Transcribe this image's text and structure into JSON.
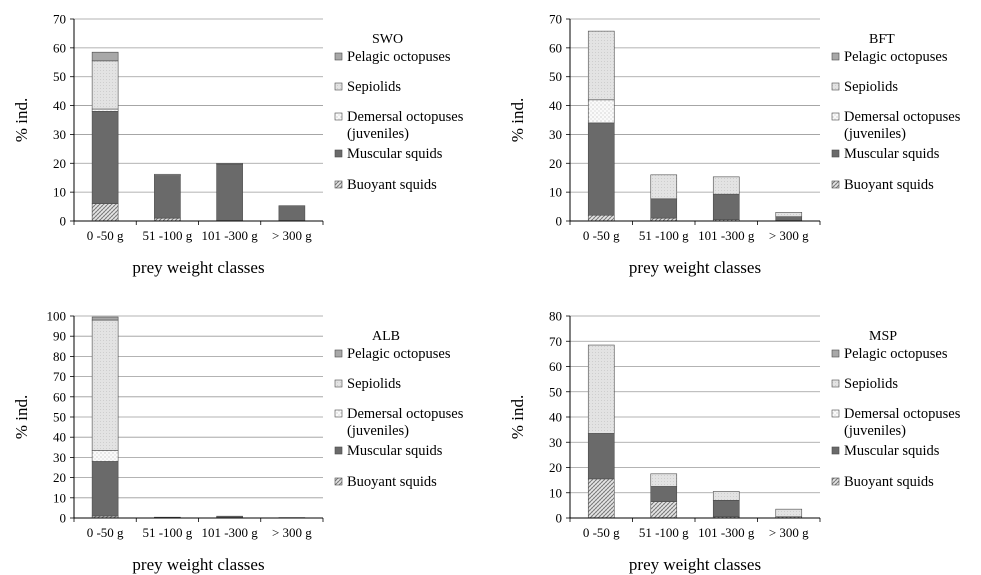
{
  "chart_data": [
    {
      "type": "bar",
      "stacked": true,
      "title": "SWO",
      "xlabel": "prey weight classes",
      "ylabel": "% ind.",
      "ylim": [
        0,
        70
      ],
      "yticks": [
        0,
        10,
        20,
        30,
        40,
        50,
        60,
        70
      ],
      "grid": true,
      "legend": "right",
      "categories": [
        "0 -50 g",
        "51 -100 g",
        "101 -300 g",
        "> 300 g"
      ],
      "series": [
        {
          "name": "Buoyant squids",
          "values": [
            6,
            1,
            0,
            0
          ]
        },
        {
          "name": "Muscular squids",
          "values": [
            32,
            14.7,
            19.7,
            5.3
          ]
        },
        {
          "name": "Demersal octopuses (juveniles)",
          "values": [
            0.8,
            0,
            0,
            0
          ]
        },
        {
          "name": "Sepiolids",
          "values": [
            16.7,
            0,
            0,
            0
          ]
        },
        {
          "name": "Pelagic octopuses",
          "values": [
            3,
            0.5,
            0.3,
            0
          ]
        }
      ]
    },
    {
      "type": "bar",
      "stacked": true,
      "title": "BFT",
      "xlabel": "prey weight classes",
      "ylabel": "% ind.",
      "ylim": [
        0,
        70
      ],
      "yticks": [
        0,
        10,
        20,
        30,
        40,
        50,
        60,
        70
      ],
      "grid": true,
      "legend": "right",
      "categories": [
        "0 -50 g",
        "51 -100 g",
        "101 -300 g",
        "> 300 g"
      ],
      "series": [
        {
          "name": "Buoyant squids",
          "values": [
            2,
            1,
            0.5,
            0
          ]
        },
        {
          "name": "Muscular squids",
          "values": [
            32,
            6.7,
            8.8,
            1.5
          ]
        },
        {
          "name": "Demersal octopuses (juveniles)",
          "values": [
            8,
            0,
            0,
            0
          ]
        },
        {
          "name": "Sepiolids",
          "values": [
            23.8,
            8.3,
            6,
            1.5
          ]
        },
        {
          "name": "Pelagic octopuses",
          "values": [
            0,
            0,
            0,
            0
          ]
        }
      ]
    },
    {
      "type": "bar",
      "stacked": true,
      "title": "ALB",
      "xlabel": "prey weight classes",
      "ylabel": "% ind.",
      "ylim": [
        0,
        100
      ],
      "yticks": [
        0,
        10,
        20,
        30,
        40,
        50,
        60,
        70,
        80,
        90,
        100
      ],
      "grid": true,
      "legend": "right",
      "categories": [
        "0 -50 g",
        "51 -100 g",
        "101 -300 g",
        "> 300 g"
      ],
      "series": [
        {
          "name": "Buoyant squids",
          "values": [
            1,
            0,
            0,
            0
          ]
        },
        {
          "name": "Muscular squids",
          "values": [
            27,
            0.4,
            0.9,
            0.2
          ]
        },
        {
          "name": "Demersal octopuses (juveniles)",
          "values": [
            5.5,
            0,
            0,
            0
          ]
        },
        {
          "name": "Sepiolids",
          "values": [
            64.5,
            0,
            0,
            0
          ]
        },
        {
          "name": "Pelagic octopuses",
          "values": [
            1.5,
            0,
            0,
            0
          ]
        }
      ]
    },
    {
      "type": "bar",
      "stacked": true,
      "title": "MSP",
      "xlabel": "prey weight classes",
      "ylabel": "% ind.",
      "ylim": [
        0,
        80
      ],
      "yticks": [
        0,
        10,
        20,
        30,
        40,
        50,
        60,
        70,
        80
      ],
      "grid": true,
      "legend": "right",
      "categories": [
        "0 -50 g",
        "51 -100 g",
        "101 -300 g",
        "> 300 g"
      ],
      "series": [
        {
          "name": "Buoyant squids",
          "values": [
            15.5,
            6.5,
            0.5,
            0.5
          ]
        },
        {
          "name": "Muscular squids",
          "values": [
            18,
            6,
            6.5,
            0
          ]
        },
        {
          "name": "Demersal octopuses (juveniles)",
          "values": [
            0,
            0,
            0,
            0
          ]
        },
        {
          "name": "Sepiolids",
          "values": [
            35,
            5,
            3.5,
            3
          ]
        },
        {
          "name": "Pelagic octopuses",
          "values": [
            0,
            0,
            0,
            0
          ]
        }
      ]
    }
  ],
  "legend_labels": {
    "pelagic": "Pelagic octopuses",
    "sepiolids": "Sepiolids",
    "demersal_line1": "Demersal octopuses",
    "demersal_line2": "(juveniles)",
    "muscular": "Muscular squids",
    "buoyant": "Buoyant squids"
  },
  "series_colors": {
    "Buoyant squids": "#bdbdbd",
    "Muscular squids": "#6a6a6a",
    "Demersal octopuses (juveniles)": "#f2f2f2",
    "Sepiolids": "#d9d9d9",
    "Pelagic octopuses": "#a8a8a8"
  }
}
